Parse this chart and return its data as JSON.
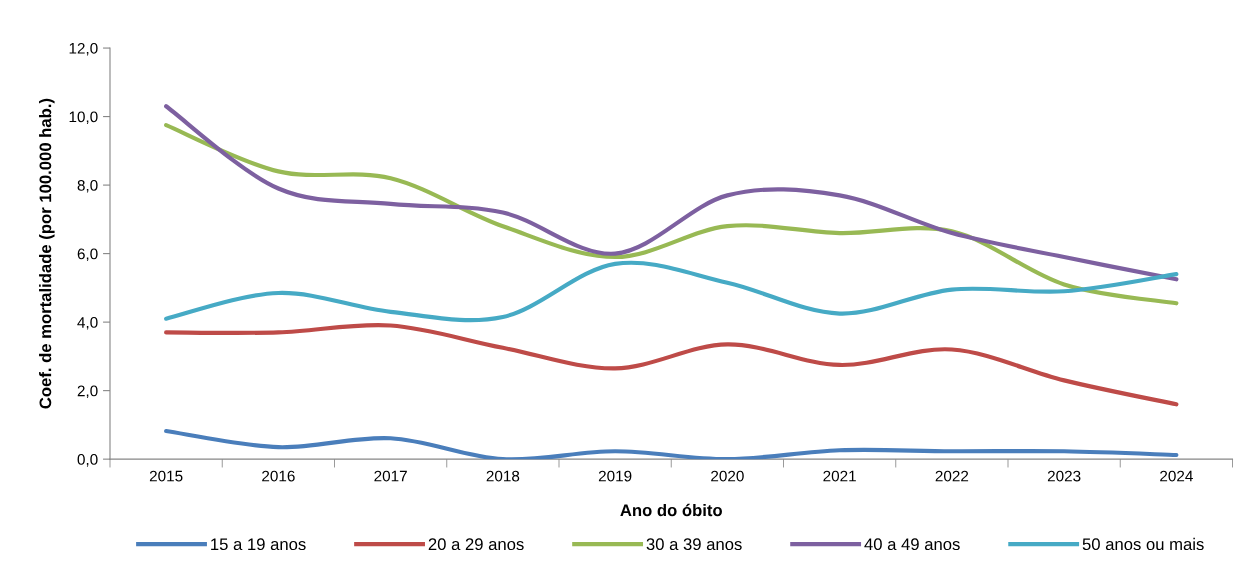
{
  "chart_data": {
    "type": "line",
    "xlabel": "Ano do óbito",
    "ylabel": "Coef. de mortalidade (por 100.000 hab.)",
    "categories": [
      "2015",
      "2016",
      "2017",
      "2018",
      "2019",
      "2020",
      "2021",
      "2022",
      "2023",
      "2024"
    ],
    "ylim": [
      0,
      12
    ],
    "yticks": [
      {
        "value": 0,
        "label": "0,0"
      },
      {
        "value": 2,
        "label": "2,0"
      },
      {
        "value": 4,
        "label": "4,0"
      },
      {
        "value": 6,
        "label": "6,0"
      },
      {
        "value": 8,
        "label": "8,0"
      },
      {
        "value": 10,
        "label": "10,0"
      },
      {
        "value": 12,
        "label": "12,0"
      }
    ],
    "grid": false,
    "legend": "bottom",
    "marker": "none",
    "line_style": "solid",
    "series": [
      {
        "name": "15 a 19 anos",
        "color": "#4a7ebb",
        "values": [
          0.82,
          0.35,
          0.61,
          0.0,
          0.23,
          0.0,
          0.26,
          0.23,
          0.23,
          0.12
        ]
      },
      {
        "name": "20 a 29 anos",
        "color": "#be4b48",
        "values": [
          3.7,
          3.7,
          3.9,
          3.25,
          2.65,
          3.35,
          2.75,
          3.2,
          2.3,
          1.6
        ]
      },
      {
        "name": "30 a 39 anos",
        "color": "#98b954",
        "values": [
          9.75,
          8.4,
          8.2,
          6.8,
          5.9,
          6.8,
          6.6,
          6.65,
          5.1,
          4.55
        ]
      },
      {
        "name": "40 a 49 anos",
        "color": "#7d60a0",
        "values": [
          10.3,
          7.9,
          7.45,
          7.2,
          6.0,
          7.7,
          7.7,
          6.6,
          5.9,
          5.25
        ]
      },
      {
        "name": "50 anos ou mais",
        "color": "#46aac5",
        "values": [
          4.1,
          4.85,
          4.3,
          4.15,
          5.7,
          5.15,
          4.25,
          4.95,
          4.9,
          5.4
        ]
      }
    ]
  }
}
